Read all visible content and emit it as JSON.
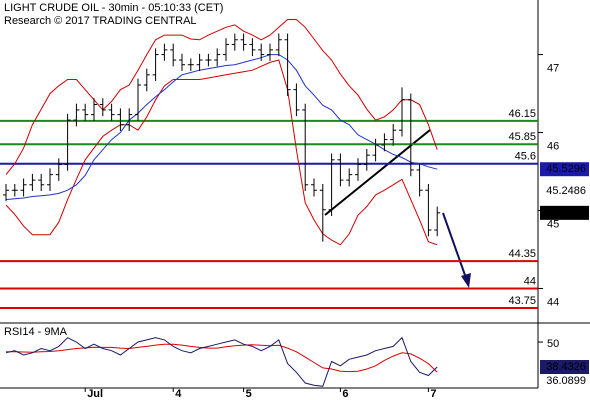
{
  "chart_data": [
    {
      "type": "ohlc",
      "title": "LIGHT CRUDE OIL - 30min - 05:10:33 (CET)",
      "subtitle": "Research © 2017 TRADING CENTRAL",
      "ylim": [
        43.57,
        47.7
      ],
      "yticks": [
        44,
        45,
        46,
        47
      ],
      "open": [
        45.2,
        45.26,
        45.26,
        45.33,
        45.39,
        45.33,
        45.46,
        45.59,
        46.16,
        46.29,
        46.23,
        46.36,
        46.29,
        46.23,
        46.1,
        46.23,
        46.61,
        46.74,
        47.0,
        47.06,
        46.93,
        46.87,
        46.87,
        46.93,
        46.93,
        47.0,
        47.13,
        47.19,
        47.13,
        47.06,
        47.0,
        47.06,
        47.19,
        46.55,
        46.29,
        45.33,
        45.26,
        45.01,
        45.65,
        45.39,
        45.46,
        45.59,
        45.71,
        45.84,
        45.91,
        46.03,
        46.42,
        45.52,
        45.26,
        44.75
      ],
      "high": [
        45.34,
        45.34,
        45.41,
        45.47,
        45.47,
        45.54,
        45.67,
        46.24,
        46.37,
        46.37,
        46.44,
        46.44,
        46.37,
        46.31,
        46.31,
        46.69,
        46.82,
        47.08,
        47.14,
        47.14,
        47.01,
        46.95,
        47.01,
        47.01,
        47.08,
        47.21,
        47.27,
        47.27,
        47.21,
        47.14,
        47.14,
        47.27,
        47.27,
        46.63,
        46.37,
        45.41,
        45.34,
        45.73,
        45.73,
        45.54,
        45.67,
        45.79,
        45.92,
        45.99,
        46.11,
        46.58,
        46.5,
        45.6,
        45.34,
        45.05
      ],
      "low": [
        45.12,
        45.18,
        45.18,
        45.25,
        45.25,
        45.25,
        45.38,
        45.51,
        46.08,
        46.15,
        46.15,
        46.21,
        46.15,
        46.02,
        46.02,
        46.15,
        46.53,
        46.66,
        46.92,
        46.85,
        46.79,
        46.79,
        46.79,
        46.85,
        46.85,
        46.92,
        47.05,
        47.05,
        46.98,
        46.92,
        46.92,
        46.98,
        46.47,
        46.21,
        45.25,
        45.18,
        44.6,
        44.93,
        45.31,
        45.31,
        45.38,
        45.51,
        45.63,
        45.76,
        45.83,
        45.95,
        45.44,
        45.18,
        44.67,
        44.67
      ],
      "close": [
        45.26,
        45.26,
        45.33,
        45.39,
        45.33,
        45.46,
        45.59,
        46.16,
        46.29,
        46.23,
        46.36,
        46.29,
        46.23,
        46.1,
        46.23,
        46.61,
        46.74,
        47.0,
        47.06,
        46.93,
        46.87,
        46.87,
        46.93,
        46.93,
        47.0,
        47.13,
        47.19,
        47.13,
        47.06,
        47.0,
        47.06,
        47.19,
        46.55,
        46.29,
        45.33,
        45.26,
        45.01,
        45.65,
        45.39,
        45.46,
        45.59,
        45.71,
        45.84,
        45.91,
        46.03,
        46.42,
        45.52,
        45.26,
        44.75,
        44.97
      ],
      "bar_color": "#000000",
      "upper": [
        45.46,
        45.6,
        45.8,
        46.1,
        46.3,
        46.5,
        46.6,
        46.68,
        46.68,
        46.55,
        46.42,
        46.29,
        46.4,
        46.55,
        46.61,
        46.8,
        47.0,
        47.19,
        47.25,
        47.25,
        47.25,
        47.2,
        47.19,
        47.25,
        47.3,
        47.35,
        47.38,
        47.3,
        47.25,
        47.19,
        47.25,
        47.35,
        47.45,
        47.45,
        47.35,
        47.2,
        47.05,
        46.93,
        46.75,
        46.6,
        46.48,
        46.3,
        46.16,
        46.2,
        46.29,
        46.42,
        46.42,
        46.36,
        46.1,
        45.78
      ],
      "middle": [
        45.14,
        45.15,
        45.16,
        45.18,
        45.19,
        45.2,
        45.22,
        45.26,
        45.33,
        45.45,
        45.65,
        45.78,
        45.91,
        46.0,
        46.16,
        46.25,
        46.36,
        46.46,
        46.55,
        46.65,
        46.74,
        46.77,
        46.8,
        46.82,
        46.84,
        46.86,
        46.87,
        46.9,
        46.93,
        46.96,
        47.0,
        47.0,
        46.93,
        46.8,
        46.6,
        46.48,
        46.35,
        46.29,
        46.16,
        46.1,
        45.97,
        45.91,
        45.85,
        45.78,
        45.72,
        45.68,
        45.62,
        45.6,
        45.56,
        45.53
      ],
      "lower": [
        45.07,
        44.95,
        44.8,
        44.69,
        44.69,
        44.69,
        44.85,
        45.14,
        45.4,
        45.65,
        45.8,
        45.95,
        46.03,
        46.1,
        46.1,
        46.03,
        46.2,
        46.42,
        46.6,
        46.68,
        46.68,
        46.68,
        46.68,
        46.7,
        46.72,
        46.74,
        46.76,
        46.78,
        46.8,
        46.85,
        46.9,
        46.93,
        46.55,
        45.78,
        45.1,
        44.88,
        44.7,
        44.62,
        44.56,
        44.7,
        44.94,
        45.05,
        45.2,
        45.26,
        45.33,
        45.4,
        45.14,
        44.88,
        44.6,
        44.56
      ],
      "band_color": "#d00000",
      "middle_color": "#2233cc",
      "levels": [
        46.15,
        45.85,
        45.6,
        44.35,
        44,
        43.75
      ],
      "level_colors": [
        "#1a8a1a",
        "#1a8a1a",
        "#1a1aaa",
        "#dd0000",
        "#dd0000",
        "#dd0000"
      ],
      "tags": [
        {
          "value": 45.5296,
          "color": "#1a1aaa",
          "boxed": true
        },
        {
          "value": 45.2486,
          "color": "#dd0000",
          "boxed": false
        },
        {
          "value": 44.97,
          "color": "#000000",
          "boxed": true
        }
      ]
    },
    {
      "type": "line",
      "title": "RSI14 - 9MA",
      "ylim": [
        28.7,
        57.9
      ],
      "yticks": [
        50
      ],
      "categories": [
        null,
        null,
        null,
        null,
        null,
        null,
        null,
        null,
        null,
        "Jul",
        null,
        null,
        null,
        null,
        null,
        null,
        null,
        null,
        null,
        "4",
        null,
        null,
        null,
        null,
        null,
        null,
        null,
        "5",
        null,
        null,
        null,
        null,
        null,
        null,
        null,
        null,
        null,
        null,
        "6",
        null,
        null,
        null,
        null,
        null,
        null,
        null,
        null,
        null,
        "7",
        null
      ],
      "values": [
        45,
        46,
        44,
        45,
        47,
        46,
        48,
        52,
        50,
        47,
        49,
        47,
        46,
        44,
        47,
        50,
        51,
        52,
        51,
        48,
        46,
        45,
        47,
        48,
        49,
        50,
        51,
        49,
        48,
        46,
        48,
        51,
        40,
        36,
        31,
        30,
        29.5,
        41,
        39,
        42,
        43,
        44,
        46,
        47,
        48,
        52,
        41,
        36,
        34.5,
        38.43
      ],
      "ma": [
        45.5,
        45.5,
        45.4,
        45.3,
        45.5,
        45.6,
        46,
        46.5,
        47,
        47.3,
        47.6,
        47.5,
        47.5,
        47.2,
        47,
        47.5,
        48,
        48.6,
        49,
        49,
        48.6,
        48,
        47.5,
        47.2,
        47.2,
        47.8,
        48.3,
        48.6,
        48.7,
        48.5,
        48.3,
        48.5,
        47.2,
        45.5,
        43,
        40.5,
        38,
        37.5,
        36.5,
        36.3,
        36.5,
        37.5,
        39,
        41.5,
        43.5,
        45,
        44.5,
        42.5,
        40,
        36.09
      ],
      "color": "#1a1a66",
      "ma_color": "#dd0000",
      "tags": [
        {
          "value": 38.4326,
          "color": "#1a1a66",
          "boxed": true
        },
        {
          "value": 36.0899,
          "color": "#dd0000",
          "boxed": false
        }
      ]
    }
  ]
}
